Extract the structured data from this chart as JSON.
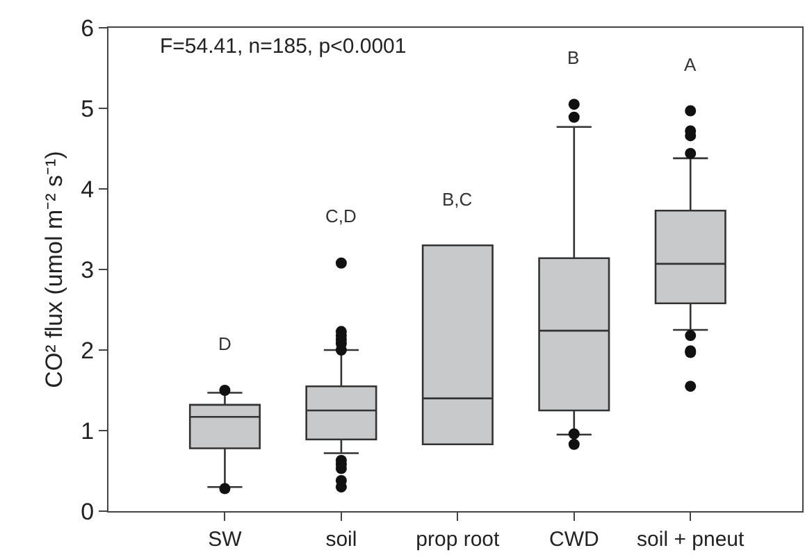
{
  "chart_data": {
    "type": "box",
    "ylabel": "CO² flux (umol m⁻² s⁻¹)",
    "categories": [
      "SW",
      "soil",
      "prop root",
      "CWD",
      "soil + pneut"
    ],
    "ylim": [
      0,
      6
    ],
    "yticks": [
      0,
      1,
      2,
      3,
      4,
      5,
      6
    ],
    "grid": false,
    "legend": false,
    "color": "#c8c9cb",
    "boxes": [
      {
        "low": 0.3,
        "q1": 0.78,
        "median": 1.17,
        "q3": 1.32,
        "high": 1.47,
        "outliers": [
          0.28,
          1.5
        ]
      },
      {
        "low": 0.72,
        "q1": 0.89,
        "median": 1.25,
        "q3": 1.55,
        "high": 2.0,
        "outliers": [
          3.08,
          2.23,
          2.18,
          2.13,
          2.08,
          2.0,
          0.63,
          0.58,
          0.53,
          0.38,
          0.3
        ]
      },
      {
        "low": 0.83,
        "q1": 0.83,
        "median": 1.4,
        "q3": 3.3,
        "high": 3.3
      },
      {
        "low": 0.95,
        "q1": 1.25,
        "median": 2.24,
        "q3": 3.14,
        "high": 4.77,
        "outliers": [
          5.05,
          4.89,
          0.96,
          0.83
        ]
      },
      {
        "low": 2.25,
        "q1": 2.58,
        "median": 3.07,
        "q3": 3.73,
        "high": 4.38,
        "outliers": [
          4.97,
          4.72,
          4.66,
          4.44,
          2.18,
          1.99,
          1.97,
          1.55
        ]
      }
    ],
    "annotations": [
      "F=54.41, n=185, p<0.0001",
      "D",
      "C,D",
      "B,C",
      "B",
      "A"
    ]
  }
}
